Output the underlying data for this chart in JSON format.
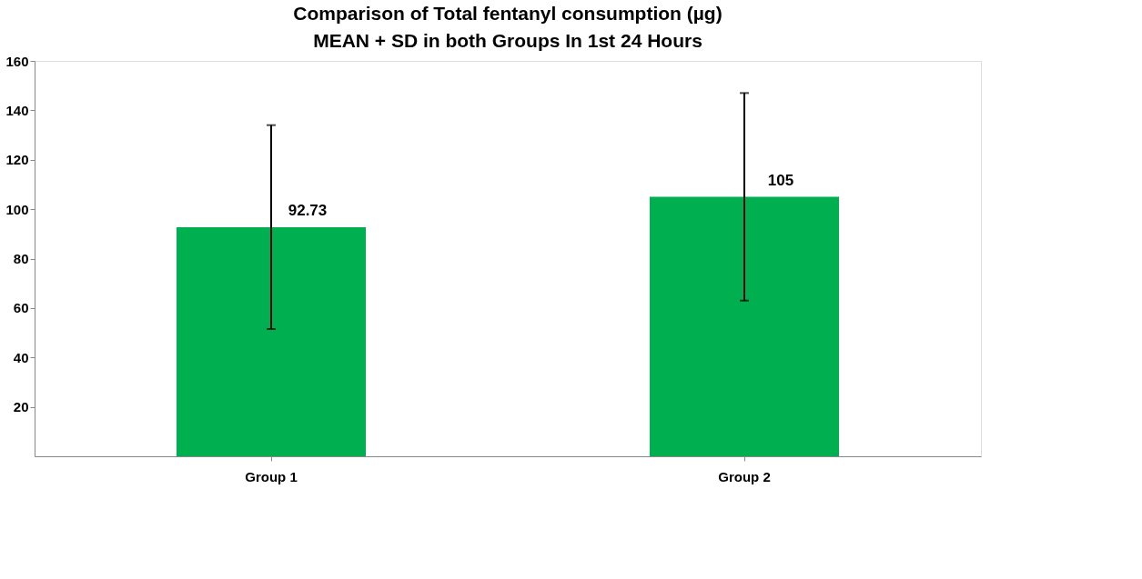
{
  "chart_data": {
    "type": "bar",
    "title": "Comparison  of Total fentanyl consumption (µg) MEAN + SD in both Groups In 1st 24 Hours",
    "categories": [
      "Group 1",
      "Group 2"
    ],
    "values": [
      92.73,
      105
    ],
    "errors": [
      [
        51.5,
        134
      ],
      [
        63,
        147
      ]
    ],
    "color": "#00b050",
    "data_labels": true,
    "ylim": [
      0,
      160
    ],
    "yticks": [
      20,
      40,
      60,
      80,
      100,
      120,
      140,
      160
    ],
    "grid": false
  }
}
